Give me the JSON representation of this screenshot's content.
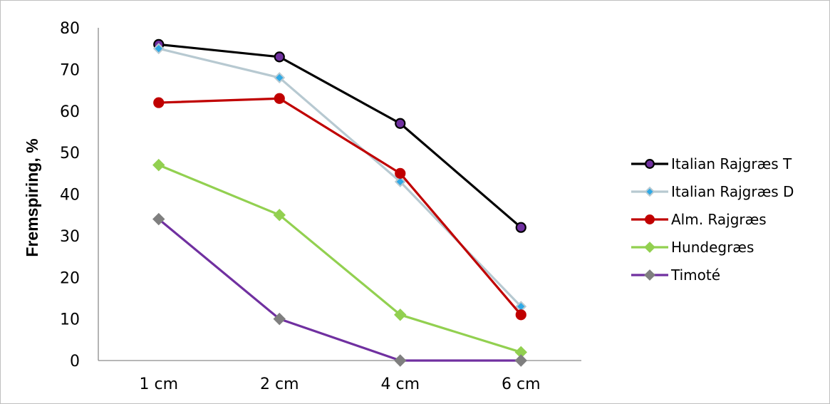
{
  "chart_data": {
    "type": "line",
    "title": "",
    "xlabel": "",
    "ylabel": "Fremspiring, %",
    "categories": [
      "1 cm",
      "2 cm",
      "4 cm",
      "6 cm"
    ],
    "ylim": [
      0,
      80
    ],
    "yticks": [
      0,
      10,
      20,
      30,
      40,
      50,
      60,
      70,
      80
    ],
    "grid": false,
    "legend_position": "right",
    "series": [
      {
        "name": "Italian Rajgræs T",
        "values": [
          76,
          73,
          57,
          32
        ],
        "color": "#000000",
        "marker": "circle",
        "marker_fill": "#7030a0"
      },
      {
        "name": "Italian Rajgræs D",
        "values": [
          75,
          68,
          43,
          13
        ],
        "color": "#b7c9d1",
        "marker": "diamond-small",
        "marker_fill": "#2fa9e6"
      },
      {
        "name": "Alm. Rajgræs",
        "values": [
          62,
          63,
          45,
          11
        ],
        "color": "#c00000",
        "marker": "circle",
        "marker_fill": "#c00000"
      },
      {
        "name": "Hundegræs",
        "values": [
          47,
          35,
          11,
          2
        ],
        "color": "#92d050",
        "marker": "diamond",
        "marker_fill": "#92d050"
      },
      {
        "name": "Timoté",
        "values": [
          34,
          10,
          0,
          0
        ],
        "color": "#7030a0",
        "marker": "diamond",
        "marker_fill": "#7f7f7f"
      }
    ]
  }
}
